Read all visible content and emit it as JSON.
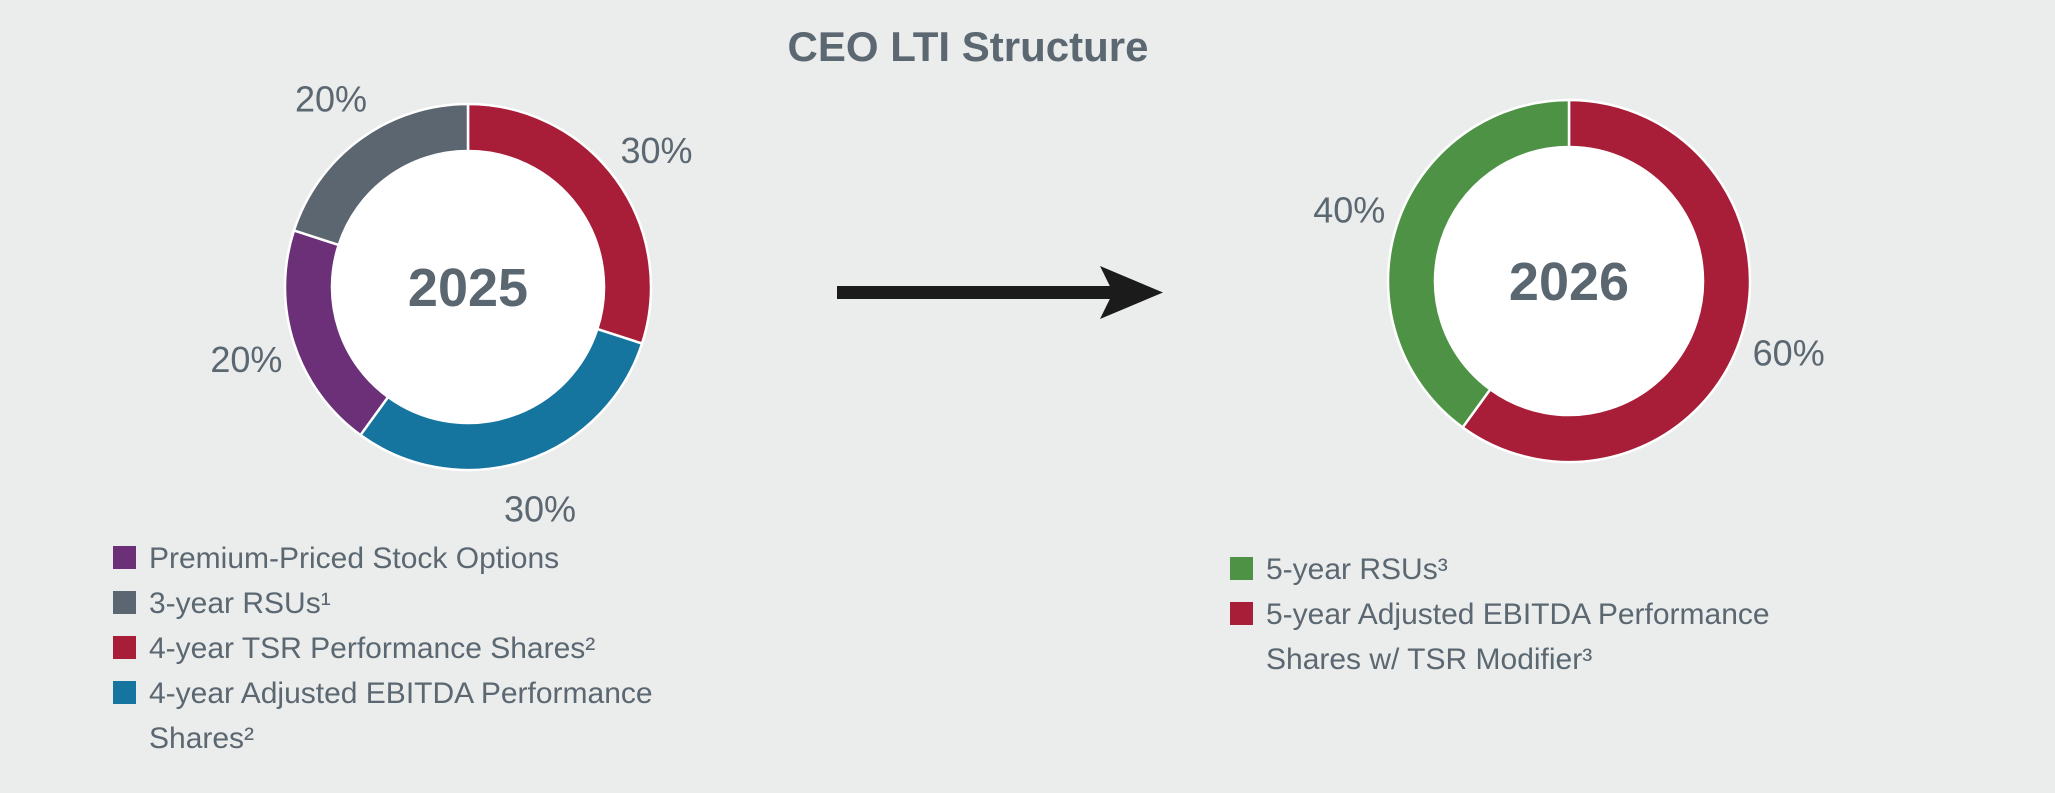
{
  "title": "CEO LTI Structure",
  "background_color": "#EBECEC",
  "text_color": "#5B6771",
  "arrow_color": "#1B1B1B",
  "chart_data": [
    {
      "type": "pie",
      "subtype": "donut",
      "title": "2025",
      "center_label": "2025",
      "start_angle_deg": 0,
      "direction": "clockwise",
      "slices": [
        {
          "label": "4-year TSR Performance Shares²",
          "value": 30,
          "pct_label": "30%",
          "color": "#A81E38"
        },
        {
          "label": "4-year Adjusted EBITDA Performance Shares²",
          "value": 30,
          "pct_label": "30%",
          "color": "#16759F"
        },
        {
          "label": "Premium-Priced Stock Options",
          "value": 20,
          "pct_label": "20%",
          "color": "#6B3077"
        },
        {
          "label": "3-year RSUs¹",
          "value": 20,
          "pct_label": "20%",
          "color": "#5C6670"
        }
      ],
      "legend": [
        {
          "label": "Premium-Priced Stock Options",
          "color": "#6B3077"
        },
        {
          "label": "3-year RSUs¹",
          "color": "#5C6670"
        },
        {
          "label": "4-year TSR Performance Shares²",
          "color": "#A81E38"
        },
        {
          "label": "4-year Adjusted EBITDA Performance Shares²",
          "color": "#16759F"
        }
      ]
    },
    {
      "type": "pie",
      "subtype": "donut",
      "title": "2026",
      "center_label": "2026",
      "start_angle_deg": 0,
      "direction": "clockwise",
      "slices": [
        {
          "label": "5-year Adjusted EBITDA Performance Shares w/ TSR Modifier³",
          "value": 60,
          "pct_label": "60%",
          "color": "#A81E38"
        },
        {
          "label": "5-year RSUs³",
          "value": 40,
          "pct_label": "40%",
          "color": "#4E9345"
        }
      ],
      "legend": [
        {
          "label": "5-year RSUs³",
          "color": "#4E9345"
        },
        {
          "label": "5-year Adjusted EBITDA Performance Shares w/ TSR Modifier³",
          "color": "#A81E38"
        }
      ]
    }
  ]
}
